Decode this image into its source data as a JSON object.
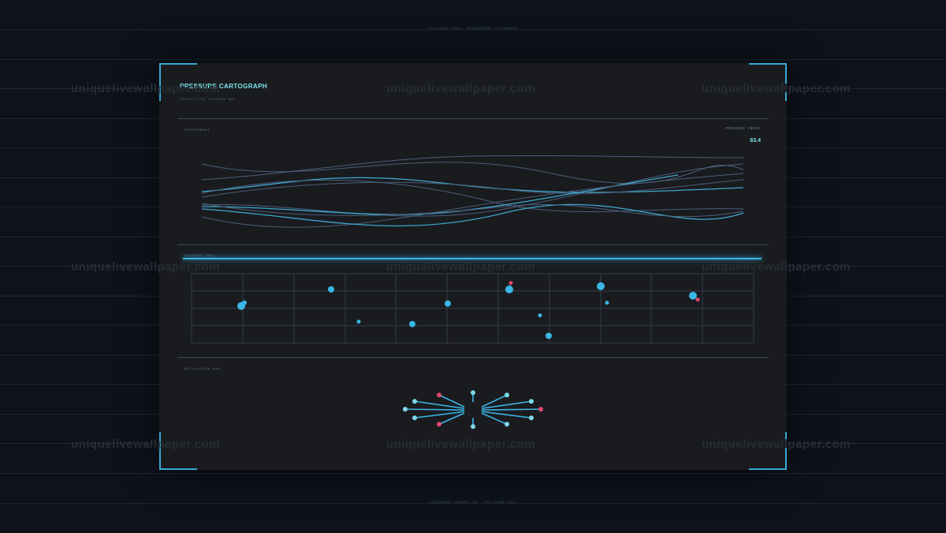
{
  "header_caption": "POLITICAL VIEW / MEASUREMENT INSTRUMENT",
  "footer_caption": "INSTRUMENT CHANNEL 06 · TRI-PLANE UNIT",
  "panel": {
    "title": "PRESSURE CARTOGRAPH",
    "subtitle": "GEOPOLITICAL PRESSURE MAP",
    "section1_label": "INTERFERENCE",
    "readout_label": "PRESSURE INDEX",
    "readout_value": "63.4",
    "section2_label": "ALIGNMENT GRID",
    "section3_label": "ARTICULATION NODE"
  },
  "watermark": "uniquelivewallpaper.com",
  "colors": {
    "accent": "#36a9d4",
    "highlight": "#7fe8ef",
    "alert": "#e0486b",
    "wave_muted": "#4a5f7a"
  }
}
